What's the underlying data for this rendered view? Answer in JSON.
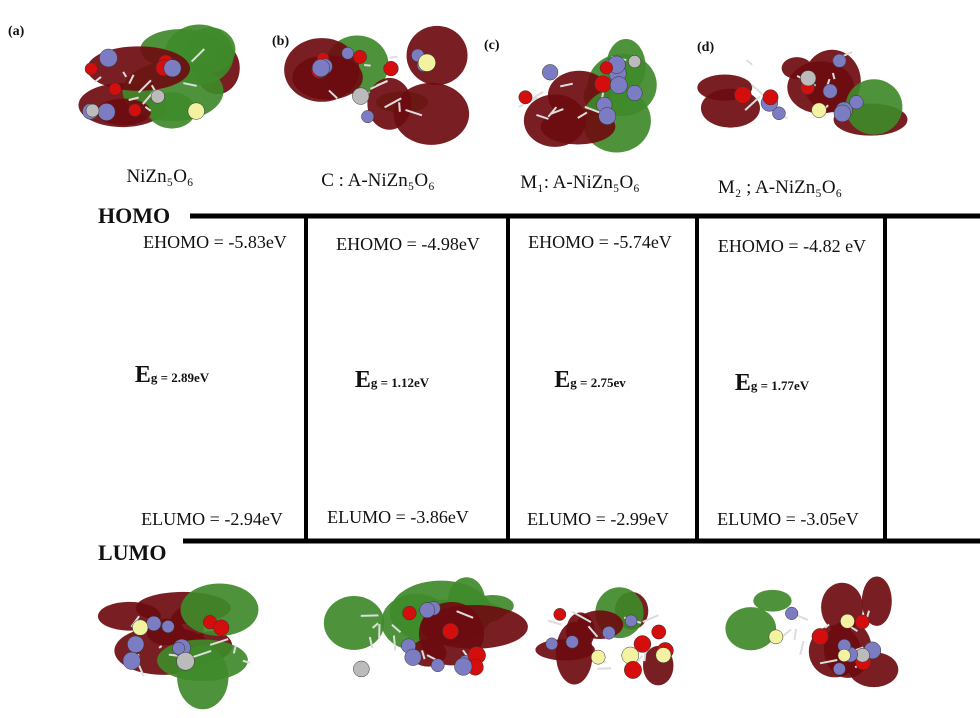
{
  "levels": {
    "homo": "HOMO",
    "lumo": "LUMO"
  },
  "panels": [
    {
      "tag": "(a)",
      "name": "NiZn₅O₆",
      "e_homo": "EHOMO = -5.83eV",
      "eg": "Eg = 2.89eV",
      "e_lumo": "ELUMO = -2.94eV"
    },
    {
      "tag": "(b)",
      "name": "C : A-NiZn₅O₆",
      "e_homo": "EHOMO = -4.98eV",
      "eg": "Eg = 1.12eV",
      "e_lumo": "ELUMO = -3.86eV"
    },
    {
      "tag": "(c)",
      "name": "M₁: A-NiZn₅O₆",
      "e_homo": "EHOMO = -5.74eV",
      "eg": "Eg = 2.75ev",
      "e_lumo": "ELUMO = -2.99eV"
    },
    {
      "tag": "(d)",
      "name": "M₂ ; A-NiZn₅O₆",
      "e_homo": "EHOMO = -4.82 eV",
      "eg": "Eg = 1.77eV",
      "e_lumo": "ELUMO = -3.05eV"
    }
  ]
}
